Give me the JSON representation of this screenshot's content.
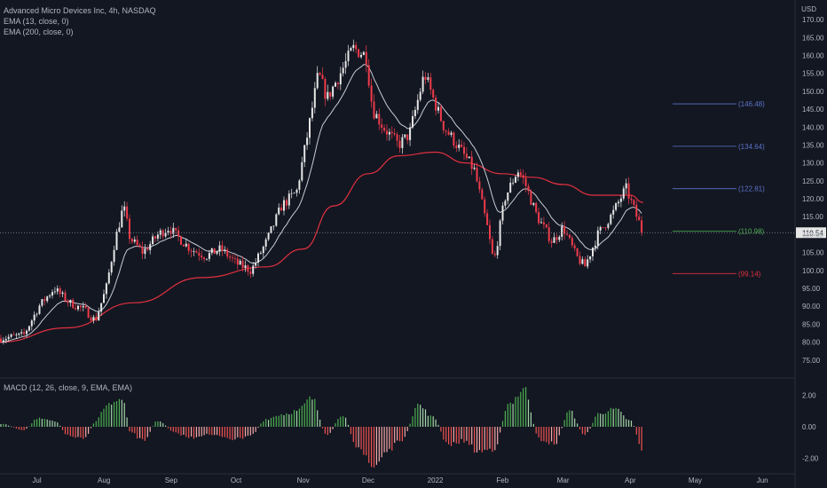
{
  "legend": {
    "symbol": "Advanced Micro Devices Inc, 4h, NASDAQ",
    "ema13": "EMA (13, close, 0)",
    "ema200": "EMA (200, close, 0)"
  },
  "macd_label": "MACD (12, 26, close, 9, EMA, EMA)",
  "currency": "USD",
  "colors": {
    "background": "#131722",
    "up": "#e6e6e6",
    "down": "#ef3b4a",
    "ema13": "#c8ccd6",
    "ema200": "#e0303f",
    "hist_up": "#26a69a",
    "hist_up_green": "#4caf50",
    "hist_down": "#ef5350",
    "fib_blue": "#5b72c8",
    "fib_green": "#4caf50",
    "fib_red": "#e0303f",
    "last_price_line": "#9598a1"
  },
  "chart_data": {
    "type": "candlestick",
    "title": "Advanced Micro Devices Inc, 4h, NASDAQ",
    "x_axis": {
      "ticks": [
        "Jul",
        "Aug",
        "Sep",
        "Oct",
        "Nov",
        "Dec",
        "2022",
        "Feb",
        "Mar",
        "Apr",
        "May",
        "Jun"
      ]
    },
    "y_axis": {
      "range": [
        70,
        172
      ],
      "ticks": [
        "75.00",
        "80.00",
        "85.00",
        "90.00",
        "95.00",
        "100.00",
        "105.00",
        "110.00",
        "115.00",
        "120.00",
        "125.00",
        "130.00",
        "135.00",
        "140.00",
        "145.00",
        "150.00",
        "155.00",
        "160.00",
        "165.00",
        "170.00"
      ]
    },
    "last_price": "110.54",
    "fib_levels": [
      {
        "label": "(146.48)",
        "value": 146.48,
        "color": "#5b72c8"
      },
      {
        "label": "(134.64)",
        "value": 134.64,
        "color": "#5b72c8"
      },
      {
        "label": "(122.81)",
        "value": 122.81,
        "color": "#5b72c8"
      },
      {
        "label": "(110.98)",
        "value": 110.98,
        "color": "#4caf50"
      },
      {
        "label": "(99.14)",
        "value": 99.14,
        "color": "#e0303f"
      }
    ],
    "price_path": [
      [
        "2021-06-14",
        81
      ],
      [
        "2021-06-25",
        82
      ],
      [
        "2021-07-02",
        90
      ],
      [
        "2021-07-09",
        95
      ],
      [
        "2021-07-16",
        91
      ],
      [
        "2021-07-23",
        89
      ],
      [
        "2021-07-28",
        86
      ],
      [
        "2021-08-02",
        95
      ],
      [
        "2021-08-06",
        108
      ],
      [
        "2021-08-10",
        118
      ],
      [
        "2021-08-13",
        109
      ],
      [
        "2021-08-19",
        105
      ],
      [
        "2021-08-26",
        110
      ],
      [
        "2021-08-31",
        112
      ],
      [
        "2021-09-03",
        110
      ],
      [
        "2021-09-10",
        106
      ],
      [
        "2021-09-17",
        104
      ],
      [
        "2021-09-24",
        106
      ],
      [
        "2021-10-01",
        102
      ],
      [
        "2021-10-08",
        100
      ],
      [
        "2021-10-15",
        108
      ],
      [
        "2021-10-22",
        118
      ],
      [
        "2021-10-29",
        122
      ],
      [
        "2021-11-03",
        138
      ],
      [
        "2021-11-08",
        155
      ],
      [
        "2021-11-12",
        148
      ],
      [
        "2021-11-19",
        156
      ],
      [
        "2021-11-24",
        162
      ],
      [
        "2021-11-30",
        160
      ],
      [
        "2021-12-03",
        145
      ],
      [
        "2021-12-08",
        140
      ],
      [
        "2021-12-15",
        135
      ],
      [
        "2021-12-20",
        138
      ],
      [
        "2021-12-27",
        155
      ],
      [
        "2021-12-31",
        148
      ],
      [
        "2022-01-05",
        140
      ],
      [
        "2022-01-11",
        135
      ],
      [
        "2022-01-19",
        128
      ],
      [
        "2022-01-25",
        112
      ],
      [
        "2022-01-28",
        102
      ],
      [
        "2022-02-02",
        120
      ],
      [
        "2022-02-08",
        128
      ],
      [
        "2022-02-11",
        125
      ],
      [
        "2022-02-17",
        115
      ],
      [
        "2022-02-24",
        108
      ],
      [
        "2022-03-01",
        112
      ],
      [
        "2022-03-07",
        104
      ],
      [
        "2022-03-11",
        101
      ],
      [
        "2022-03-17",
        110
      ],
      [
        "2022-03-24",
        116
      ],
      [
        "2022-03-30",
        123
      ],
      [
        "2022-04-04",
        115
      ],
      [
        "2022-04-07",
        110.54
      ]
    ],
    "ema200_path": [
      [
        "2021-06-14",
        80
      ],
      [
        "2021-07-15",
        84
      ],
      [
        "2021-08-15",
        91
      ],
      [
        "2021-09-15",
        98
      ],
      [
        "2021-10-15",
        101
      ],
      [
        "2021-11-01",
        106
      ],
      [
        "2021-11-15",
        118
      ],
      [
        "2021-12-01",
        127
      ],
      [
        "2021-12-15",
        132
      ],
      [
        "2022-01-01",
        133
      ],
      [
        "2022-01-15",
        130
      ],
      [
        "2022-02-01",
        127
      ],
      [
        "2022-02-15",
        126
      ],
      [
        "2022-03-01",
        124
      ],
      [
        "2022-03-15",
        121
      ],
      [
        "2022-04-01",
        121
      ],
      [
        "2022-04-07",
        119
      ]
    ],
    "macd_axis": {
      "range": [
        -3,
        3
      ],
      "ticks": [
        "2.00",
        "0.00",
        "-2.00"
      ]
    },
    "macd_hist": [
      [
        "2021-06-14",
        0.2
      ],
      [
        "2021-06-25",
        -0.2
      ],
      [
        "2021-07-02",
        0.6
      ],
      [
        "2021-07-09",
        0.4
      ],
      [
        "2021-07-16",
        -0.6
      ],
      [
        "2021-07-23",
        -0.8
      ],
      [
        "2021-07-28",
        0.3
      ],
      [
        "2021-08-02",
        1.4
      ],
      [
        "2021-08-10",
        1.9
      ],
      [
        "2021-08-13",
        -0.3
      ],
      [
        "2021-08-19",
        -0.9
      ],
      [
        "2021-08-26",
        0.4
      ],
      [
        "2021-09-03",
        -0.4
      ],
      [
        "2021-09-10",
        -0.7
      ],
      [
        "2021-09-17",
        -0.5
      ],
      [
        "2021-09-24",
        -0.6
      ],
      [
        "2021-10-01",
        -0.8
      ],
      [
        "2021-10-08",
        -0.5
      ],
      [
        "2021-10-15",
        0.5
      ],
      [
        "2021-10-22",
        0.8
      ],
      [
        "2021-10-29",
        1.0
      ],
      [
        "2021-11-05",
        1.8
      ],
      [
        "2021-11-12",
        -0.6
      ],
      [
        "2021-11-19",
        0.8
      ],
      [
        "2021-11-26",
        -1.2
      ],
      [
        "2021-12-03",
        -2.6
      ],
      [
        "2021-12-10",
        -1.5
      ],
      [
        "2021-12-17",
        -0.8
      ],
      [
        "2021-12-24",
        1.4
      ],
      [
        "2021-12-31",
        0.6
      ],
      [
        "2022-01-07",
        -1.2
      ],
      [
        "2022-01-14",
        -0.9
      ],
      [
        "2022-01-21",
        -1.6
      ],
      [
        "2022-01-28",
        -1.4
      ],
      [
        "2022-02-04",
        1.5
      ],
      [
        "2022-02-11",
        2.4
      ],
      [
        "2022-02-18",
        -0.8
      ],
      [
        "2022-02-25",
        -1.1
      ],
      [
        "2022-03-04",
        1.0
      ],
      [
        "2022-03-11",
        -0.5
      ],
      [
        "2022-03-18",
        0.9
      ],
      [
        "2022-03-25",
        1.1
      ],
      [
        "2022-04-01",
        0.4
      ],
      [
        "2022-04-07",
        -1.5
      ]
    ]
  }
}
